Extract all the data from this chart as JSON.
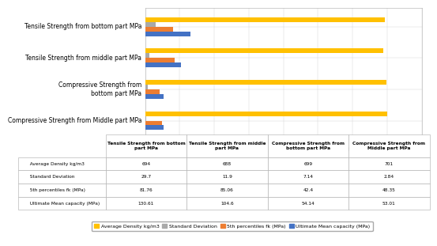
{
  "categories": [
    "Compressive Strength from Middle part MPa",
    "Compressive Strength from\nbottom part MPa",
    "Tensile Strength from middle part MPa",
    "Tensile Strength from bottom part MPa"
  ],
  "series_order": [
    "Average Density kg/m3",
    "Standard Deviation",
    "5th percentiles fk (MPa)",
    "Ultimate Mean capacity (MPa)"
  ],
  "series": {
    "Average Density kg/m3": [
      701,
      699,
      688,
      694
    ],
    "Standard Deviation": [
      2.84,
      7.14,
      11.9,
      29.7
    ],
    "5th percentiles fk (MPa)": [
      48.35,
      42.4,
      85.06,
      81.76
    ],
    "Ultimate Mean capacity (MPa)": [
      53.01,
      54.14,
      104.6,
      130.61
    ]
  },
  "colors": {
    "Average Density kg/m3": "#FFC000",
    "Standard Deviation": "#A9A9A9",
    "5th percentiles fk (MPa)": "#ED7D31",
    "Ultimate Mean capacity (MPa)": "#4472C4"
  },
  "xlim": [
    0,
    800
  ],
  "xticks": [
    0,
    100,
    200,
    300,
    400,
    500,
    600,
    700,
    800
  ],
  "table_col_headers": [
    "Tensile Strength from bottom\npart MPa",
    "Tensile Strength from middle\npart MPa",
    "Compressive Strength from\nbottom part MPa",
    "Compressive Strength from\nMiddle part MPa"
  ],
  "table_row_labels": [
    "Average Density kg/m3",
    "Standard Deviation",
    "5th percentiles fk (MPa)",
    "Ultimate Mean capacity (MPa)"
  ],
  "table_data": [
    [
      "694",
      "688",
      "699",
      "701"
    ],
    [
      "29.7",
      "11.9",
      "7.14",
      "2.84"
    ],
    [
      "81.76",
      "85.06",
      "42.4",
      "48.35"
    ],
    [
      "130.61",
      "104.6",
      "54.14",
      "53.01"
    ]
  ],
  "row_colors": [
    "#FFC000",
    "#A9A9A9",
    "#ED7D31",
    "#4472C4"
  ],
  "bar_height": 0.15,
  "background_color": "#FFFFFF",
  "legend_labels": [
    "Average Density kg/m3",
    "Standard Deviation",
    "5th percentiles fk (MPa)",
    "Ultimate Mean capacity (MPa)"
  ]
}
